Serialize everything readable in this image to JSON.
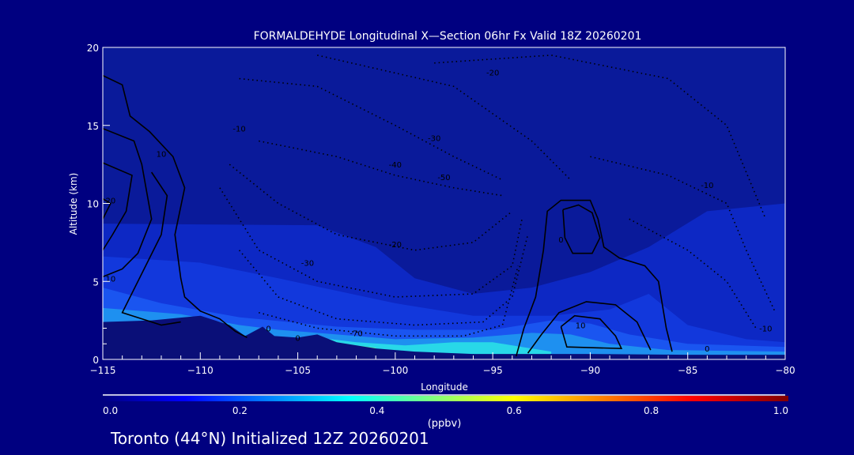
{
  "chart_data": {
    "type": "heatmap",
    "title": "FORMALDEHYDE Longitudinal X—Section 06hr  Fx Valid 18Z 20260201",
    "xlabel": "Longitude",
    "ylabel": "Altitude (km)",
    "xlim": [
      -115,
      -80
    ],
    "ylim": [
      0,
      20
    ],
    "xticks": [
      -115,
      -110,
      -105,
      -100,
      -95,
      -90,
      -85,
      -80
    ],
    "xtick_labels": [
      "−115",
      "−110",
      "−105",
      "−100",
      "−95",
      "−90",
      "−85",
      "−80"
    ],
    "yticks": [
      0,
      5,
      10,
      15,
      20
    ],
    "ytick_labels": [
      "0",
      "5",
      "10",
      "15",
      "20"
    ],
    "colorbar": {
      "label": "(ppbv)",
      "range": [
        0.0,
        1.0
      ],
      "ticks": [
        "0.0",
        "0.2",
        "0.4",
        "0.6",
        "0.8",
        "1.0"
      ],
      "colors": [
        "#000080",
        "#0000ff",
        "#00ffff",
        "#ffff00",
        "#ff0000",
        "#800000"
      ]
    },
    "background_color": "#0a1a9a",
    "bands": [
      {
        "level": 0.05,
        "color": "#0d28c4",
        "top": [
          [
            -115,
            8.7
          ],
          [
            -104,
            8.6
          ],
          [
            -101,
            7.2
          ],
          [
            -99,
            5.2
          ],
          [
            -96,
            4.2
          ],
          [
            -93,
            4.6
          ],
          [
            -90,
            5.6
          ],
          [
            -87,
            7.2
          ],
          [
            -84,
            9.5
          ],
          [
            -80,
            10
          ]
        ]
      },
      {
        "level": 0.1,
        "color": "#1238dc",
        "top": [
          [
            -115,
            6.6
          ],
          [
            -110,
            6.2
          ],
          [
            -106,
            5.2
          ],
          [
            -100,
            3.6
          ],
          [
            -96,
            2.8
          ],
          [
            -92,
            2.8
          ],
          [
            -89,
            3.2
          ],
          [
            -87,
            4.2
          ],
          [
            -85,
            2.2
          ],
          [
            -82,
            1.3
          ],
          [
            -80,
            1.1
          ]
        ]
      },
      {
        "level": 0.15,
        "color": "#1a55f0",
        "top": [
          [
            -115,
            4.6
          ],
          [
            -112,
            3.6
          ],
          [
            -108,
            2.7
          ],
          [
            -103,
            2.1
          ],
          [
            -99,
            1.9
          ],
          [
            -95,
            1.9
          ],
          [
            -92,
            2.5
          ],
          [
            -90,
            2.3
          ],
          [
            -88,
            1.6
          ],
          [
            -85,
            1.0
          ],
          [
            -80,
            0.8
          ]
        ]
      },
      {
        "level": 0.25,
        "color": "#1e90f0",
        "top": [
          [
            -115,
            3.3
          ],
          [
            -111,
            2.9
          ],
          [
            -108,
            2.2
          ],
          [
            -106,
            1.9
          ],
          [
            -103,
            1.6
          ],
          [
            -100,
            1.3
          ],
          [
            -96,
            1.4
          ],
          [
            -93,
            1.7
          ],
          [
            -91,
            1.6
          ],
          [
            -89,
            1.0
          ],
          [
            -86,
            0.6
          ],
          [
            -80,
            0.5
          ]
        ]
      },
      {
        "level": 0.35,
        "color": "#28d8e8",
        "top": [
          [
            -104,
            1.4
          ],
          [
            -102,
            1.1
          ],
          [
            -99.5,
            0.9
          ],
          [
            -97,
            1.1
          ],
          [
            -95,
            1.1
          ],
          [
            -93.5,
            0.8
          ],
          [
            -92,
            0.5
          ]
        ]
      },
      {
        "level": 0.45,
        "color": "#60f0a0",
        "top": [
          [
            -103,
            1.1
          ],
          [
            -102,
            0.9
          ],
          [
            -101,
            0.75
          ]
        ]
      }
    ],
    "terrain": {
      "color": "#0a0f78",
      "top": [
        [
          -115,
          2.4
        ],
        [
          -112.5,
          2.5
        ],
        [
          -110,
          2.8
        ],
        [
          -108.5,
          2.2
        ],
        [
          -107.7,
          1.5
        ],
        [
          -106.8,
          2.1
        ],
        [
          -106.2,
          1.5
        ],
        [
          -105,
          1.4
        ],
        [
          -104,
          1.6
        ],
        [
          -103,
          1.1
        ],
        [
          -101,
          0.7
        ],
        [
          -99,
          0.5
        ],
        [
          -96,
          0.35
        ],
        [
          -93,
          0.35
        ],
        [
          -90,
          0.35
        ],
        [
          -85,
          0.3
        ],
        [
          -80,
          0.3
        ]
      ]
    },
    "contours_solid": [
      [
        [
          -115,
          18.2
        ],
        [
          -114,
          17.6
        ],
        [
          -113.6,
          15.6
        ],
        [
          -112.6,
          14.6
        ],
        [
          -111.4,
          13
        ],
        [
          -110.8,
          11
        ],
        [
          -111.3,
          8
        ],
        [
          -111,
          5.2
        ],
        [
          -110.8,
          4
        ],
        [
          -110,
          3.1
        ],
        [
          -109,
          2.6
        ],
        [
          -108.2,
          1.8
        ],
        [
          -107.6,
          1.4
        ]
      ],
      [
        [
          -115,
          14.8
        ],
        [
          -113.4,
          14
        ],
        [
          -113,
          12.5
        ],
        [
          -112.5,
          9
        ],
        [
          -113.2,
          6.8
        ],
        [
          -114,
          5.8
        ],
        [
          -115,
          5.3
        ]
      ],
      [
        [
          -115,
          12.6
        ],
        [
          -113.5,
          11.8
        ],
        [
          -113.8,
          9.5
        ],
        [
          -114.5,
          8
        ],
        [
          -115,
          7
        ]
      ],
      [
        [
          -115,
          10.3
        ],
        [
          -114.6,
          10
        ],
        [
          -115,
          9
        ]
      ],
      [
        [
          -112.5,
          12
        ],
        [
          -111.7,
          10.5
        ],
        [
          -112,
          8
        ],
        [
          -112.8,
          6
        ],
        [
          -113.6,
          4
        ],
        [
          -114,
          3
        ],
        [
          -113,
          2.6
        ],
        [
          -112,
          2.2
        ],
        [
          -111,
          2.4
        ]
      ],
      [
        [
          -93.8,
          0.2
        ],
        [
          -93.4,
          2
        ],
        [
          -92.8,
          4
        ],
        [
          -92.4,
          7
        ],
        [
          -92.2,
          9.5
        ],
        [
          -91.5,
          10.2
        ],
        [
          -90,
          10.2
        ],
        [
          -89.6,
          9
        ],
        [
          -89.3,
          7.2
        ],
        [
          -88.5,
          6.5
        ],
        [
          -87.2,
          6
        ],
        [
          -86.5,
          5
        ],
        [
          -86.1,
          2
        ],
        [
          -85.8,
          0.5
        ]
      ],
      [
        [
          -91.4,
          9.6
        ],
        [
          -90.6,
          9.9
        ],
        [
          -89.9,
          9.4
        ],
        [
          -89.5,
          7.8
        ],
        [
          -89.9,
          6.8
        ],
        [
          -90.9,
          6.8
        ],
        [
          -91.3,
          7.8
        ],
        [
          -91.4,
          9.6
        ]
      ],
      [
        [
          -93.2,
          0.4
        ],
        [
          -92.5,
          1.6
        ],
        [
          -91.6,
          3
        ],
        [
          -90.2,
          3.7
        ],
        [
          -88.7,
          3.5
        ],
        [
          -87.6,
          2.4
        ],
        [
          -86.9,
          0.6
        ]
      ],
      [
        [
          -91.5,
          2.1
        ],
        [
          -90.8,
          2.8
        ],
        [
          -89.5,
          2.6
        ],
        [
          -88.7,
          1.5
        ],
        [
          -88.4,
          0.7
        ],
        [
          -91.2,
          0.8
        ],
        [
          -91.5,
          2.1
        ]
      ]
    ],
    "contours_dotted": [
      [
        [
          -108,
          18
        ],
        [
          -104,
          17.5
        ],
        [
          -100,
          15
        ],
        [
          -97,
          13
        ],
        [
          -94.5,
          11.5
        ]
      ],
      [
        [
          -107,
          14
        ],
        [
          -103,
          13
        ],
        [
          -100,
          11.8
        ],
        [
          -97,
          11
        ],
        [
          -94.5,
          10.5
        ]
      ],
      [
        [
          -108.5,
          12.5
        ],
        [
          -106,
          10
        ],
        [
          -103,
          8
        ],
        [
          -99,
          7
        ],
        [
          -96,
          7.5
        ],
        [
          -94,
          9.5
        ]
      ],
      [
        [
          -109,
          11
        ],
        [
          -107,
          7
        ],
        [
          -104,
          5
        ],
        [
          -100,
          4
        ],
        [
          -96,
          4.2
        ],
        [
          -94,
          6
        ],
        [
          -93.5,
          9
        ]
      ],
      [
        [
          -108,
          7
        ],
        [
          -106,
          4
        ],
        [
          -103,
          2.6
        ],
        [
          -99,
          2.2
        ],
        [
          -95.5,
          2.4
        ],
        [
          -94,
          4
        ],
        [
          -93.2,
          8
        ]
      ],
      [
        [
          -107,
          3
        ],
        [
          -104,
          2
        ],
        [
          -100,
          1.5
        ],
        [
          -96.5,
          1.5
        ],
        [
          -94.5,
          2.2
        ],
        [
          -93.7,
          6
        ]
      ],
      [
        [
          -98,
          19
        ],
        [
          -92,
          19.5
        ],
        [
          -86,
          18
        ],
        [
          -83,
          15
        ],
        [
          -82,
          12
        ],
        [
          -81,
          9
        ]
      ],
      [
        [
          -90,
          13
        ],
        [
          -86,
          11.8
        ],
        [
          -83,
          10
        ],
        [
          -82,
          7
        ],
        [
          -80.5,
          3
        ]
      ],
      [
        [
          -88,
          9
        ],
        [
          -85,
          7
        ],
        [
          -83,
          5
        ],
        [
          -81.5,
          2
        ]
      ],
      [
        [
          -104,
          19.5
        ],
        [
          -97,
          17.5
        ],
        [
          -93,
          14
        ],
        [
          -91,
          11.5
        ]
      ]
    ],
    "annotations": [
      {
        "text": "20",
        "x": -114.6,
        "y": 10
      },
      {
        "text": "10",
        "x": -114.6,
        "y": 5
      },
      {
        "text": "10",
        "x": -112,
        "y": 13
      },
      {
        "text": "-10",
        "x": -108,
        "y": 14.6
      },
      {
        "text": "-20",
        "x": -95,
        "y": 18.2
      },
      {
        "text": "-30",
        "x": -98,
        "y": 14
      },
      {
        "text": "-40",
        "x": -100,
        "y": 12.3
      },
      {
        "text": "-50",
        "x": -97.5,
        "y": 11.5
      },
      {
        "text": "-30",
        "x": -104.5,
        "y": 6
      },
      {
        "text": "-20",
        "x": -100,
        "y": 7.2
      },
      {
        "text": "-70",
        "x": -102,
        "y": 1.5
      },
      {
        "text": "0",
        "x": -106.5,
        "y": 1.8
      },
      {
        "text": "0",
        "x": -105,
        "y": 1.2
      },
      {
        "text": "10",
        "x": -90.5,
        "y": 2
      },
      {
        "text": "0",
        "x": -91.5,
        "y": 7.5
      },
      {
        "text": "-10",
        "x": -84,
        "y": 11
      },
      {
        "text": "0",
        "x": -84,
        "y": 0.5
      },
      {
        "text": "-10",
        "x": -81,
        "y": 1.8
      }
    ]
  },
  "footer": "Toronto (44°N) Initialized 12Z 20260201"
}
